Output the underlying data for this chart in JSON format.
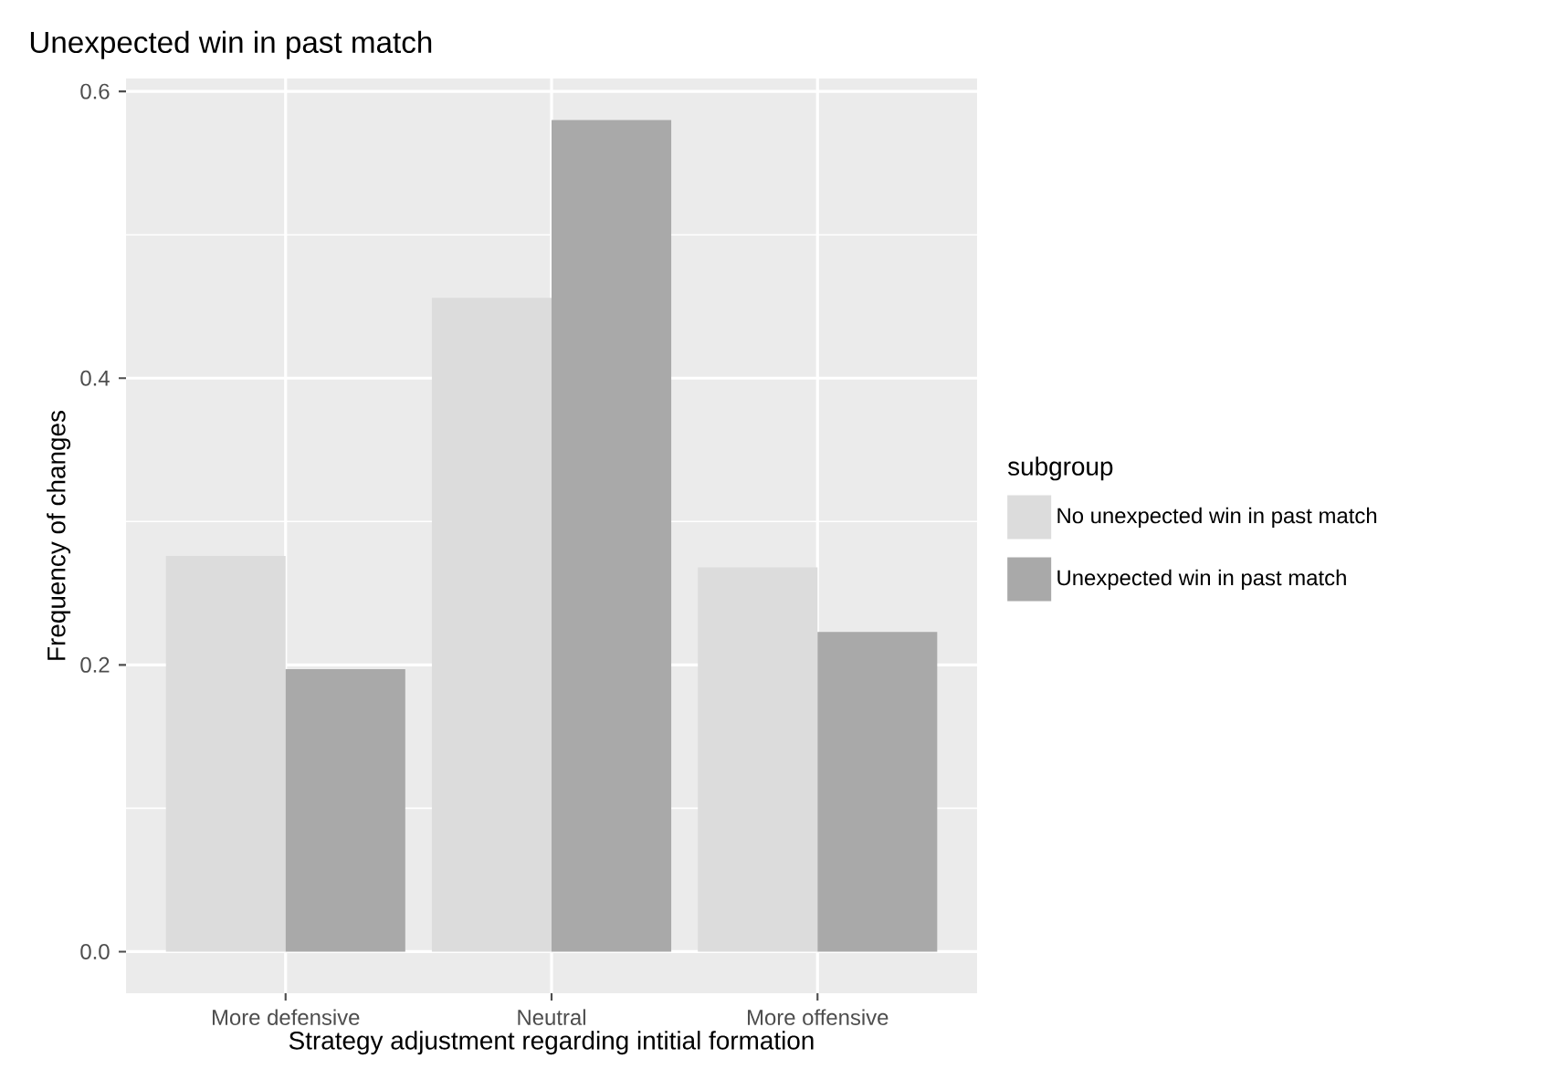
{
  "chart_data": {
    "type": "bar",
    "title": "Unexpected win in past match",
    "xlabel": "Strategy adjustment regarding intitial formation",
    "ylabel": "Frequency of changes",
    "legend_title": "subgroup",
    "categories": [
      "More defensive",
      "Neutral",
      "More offensive"
    ],
    "series": [
      {
        "name": "No unexpected win in past match",
        "color": "#dcdcdc",
        "values": [
          0.276,
          0.456,
          0.268
        ]
      },
      {
        "name": "Unexpected win in past match",
        "color": "#a9a9a9",
        "values": [
          0.197,
          0.58,
          0.223
        ]
      }
    ],
    "ylim": [
      -0.029,
      0.609
    ],
    "yticks": [
      {
        "value": 0.0,
        "label": "0.0"
      },
      {
        "value": 0.2,
        "label": "0.2"
      },
      {
        "value": 0.4,
        "label": "0.4"
      },
      {
        "value": 0.6,
        "label": "0.6"
      }
    ],
    "grid": true,
    "legend": "right"
  }
}
